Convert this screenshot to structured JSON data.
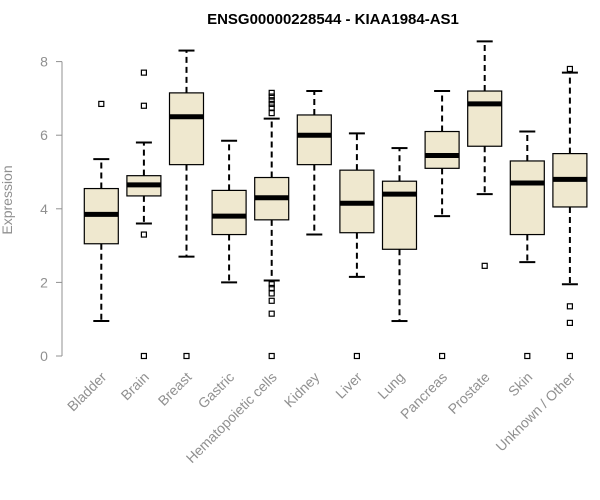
{
  "chart_data": {
    "type": "boxplot",
    "title": "ENSG00000228544 - KIAA1984-AS1",
    "xlabel": "",
    "ylabel": "Expression",
    "ylim": [
      0,
      8.6
    ],
    "yticks": [
      "0",
      "2",
      "4",
      "6",
      "8"
    ],
    "box_fill": "#efe8cf",
    "stroke": "#000000",
    "axis_color": "#909090",
    "categories": [
      "Bladder",
      "Brain",
      "Breast",
      "Gastric",
      "Hematopoietic cells",
      "Kidney",
      "Liver",
      "Lung",
      "Pancreas",
      "Prostate",
      "Skin",
      "Unknown / Other"
    ],
    "boxes": [
      {
        "name": "Bladder",
        "whisker_low": 0.95,
        "q1": 3.05,
        "median": 3.85,
        "q3": 4.55,
        "whisker_high": 5.35,
        "outliers": [
          6.85
        ]
      },
      {
        "name": "Brain",
        "whisker_low": 3.6,
        "q1": 4.35,
        "median": 4.65,
        "q3": 4.9,
        "whisker_high": 5.8,
        "outliers": [
          0,
          3.3,
          6.8,
          7.7
        ]
      },
      {
        "name": "Breast",
        "whisker_low": 2.7,
        "q1": 5.2,
        "median": 6.5,
        "q3": 7.15,
        "whisker_high": 8.3,
        "outliers": [
          0
        ]
      },
      {
        "name": "Gastric",
        "whisker_low": 2.0,
        "q1": 3.3,
        "median": 3.8,
        "q3": 4.5,
        "whisker_high": 5.85,
        "outliers": []
      },
      {
        "name": "Hematopoietic cells",
        "whisker_low": 2.05,
        "q1": 3.7,
        "median": 4.3,
        "q3": 4.85,
        "whisker_high": 6.45,
        "outliers": [
          0,
          1.15,
          1.5,
          1.7,
          1.85,
          1.95,
          6.6,
          6.75,
          6.85,
          6.95,
          7.05,
          7.15
        ]
      },
      {
        "name": "Kidney",
        "whisker_low": 3.3,
        "q1": 5.2,
        "median": 6.0,
        "q3": 6.55,
        "whisker_high": 7.2,
        "outliers": []
      },
      {
        "name": "Liver",
        "whisker_low": 2.15,
        "q1": 3.35,
        "median": 4.15,
        "q3": 5.05,
        "whisker_high": 6.05,
        "outliers": [
          0
        ]
      },
      {
        "name": "Lung",
        "whisker_low": 0.95,
        "q1": 2.9,
        "median": 4.4,
        "q3": 4.75,
        "whisker_high": 5.65,
        "outliers": []
      },
      {
        "name": "Pancreas",
        "whisker_low": 3.8,
        "q1": 5.1,
        "median": 5.45,
        "q3": 6.1,
        "whisker_high": 7.2,
        "outliers": [
          0
        ]
      },
      {
        "name": "Prostate",
        "whisker_low": 4.4,
        "q1": 5.7,
        "median": 6.85,
        "q3": 7.2,
        "whisker_high": 8.55,
        "outliers": [
          2.45
        ]
      },
      {
        "name": "Skin",
        "whisker_low": 2.55,
        "q1": 3.3,
        "median": 4.7,
        "q3": 5.3,
        "whisker_high": 6.1,
        "outliers": [
          0
        ]
      },
      {
        "name": "Unknown / Other",
        "whisker_low": 1.95,
        "q1": 4.05,
        "median": 4.8,
        "q3": 5.5,
        "whisker_high": 7.7,
        "outliers": [
          0,
          0.9,
          1.35,
          7.8
        ]
      }
    ]
  }
}
